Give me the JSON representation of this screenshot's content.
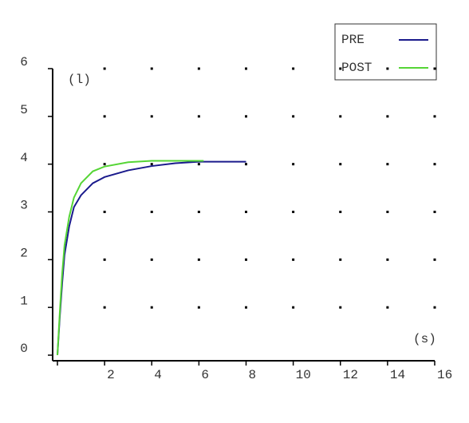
{
  "chart_data": {
    "type": "line",
    "x_label": "(s)",
    "y_label": "(l)",
    "xlim": [
      0,
      16
    ],
    "ylim": [
      0,
      6
    ],
    "xticks": [
      2,
      4,
      6,
      8,
      10,
      12,
      14,
      16
    ],
    "yticks": [
      0,
      1,
      2,
      3,
      4,
      5,
      6
    ],
    "grid": "dots",
    "legend": "upper right",
    "series": [
      {
        "name": "PRE",
        "color": "#1a1a8c",
        "x": [
          0,
          0.1,
          0.2,
          0.3,
          0.5,
          0.7,
          1,
          1.5,
          2,
          3,
          4,
          5,
          6,
          8
        ],
        "values": [
          0,
          0.8,
          1.5,
          2.1,
          2.7,
          3.1,
          3.35,
          3.6,
          3.73,
          3.87,
          3.96,
          4.02,
          4.05,
          4.05
        ]
      },
      {
        "name": "POST",
        "color": "#55d535",
        "x": [
          0,
          0.1,
          0.2,
          0.3,
          0.5,
          0.7,
          1,
          1.5,
          2,
          3,
          4,
          6.2
        ],
        "values": [
          0,
          0.9,
          1.7,
          2.3,
          2.9,
          3.3,
          3.6,
          3.85,
          3.95,
          4.04,
          4.07,
          4.07
        ]
      }
    ]
  }
}
